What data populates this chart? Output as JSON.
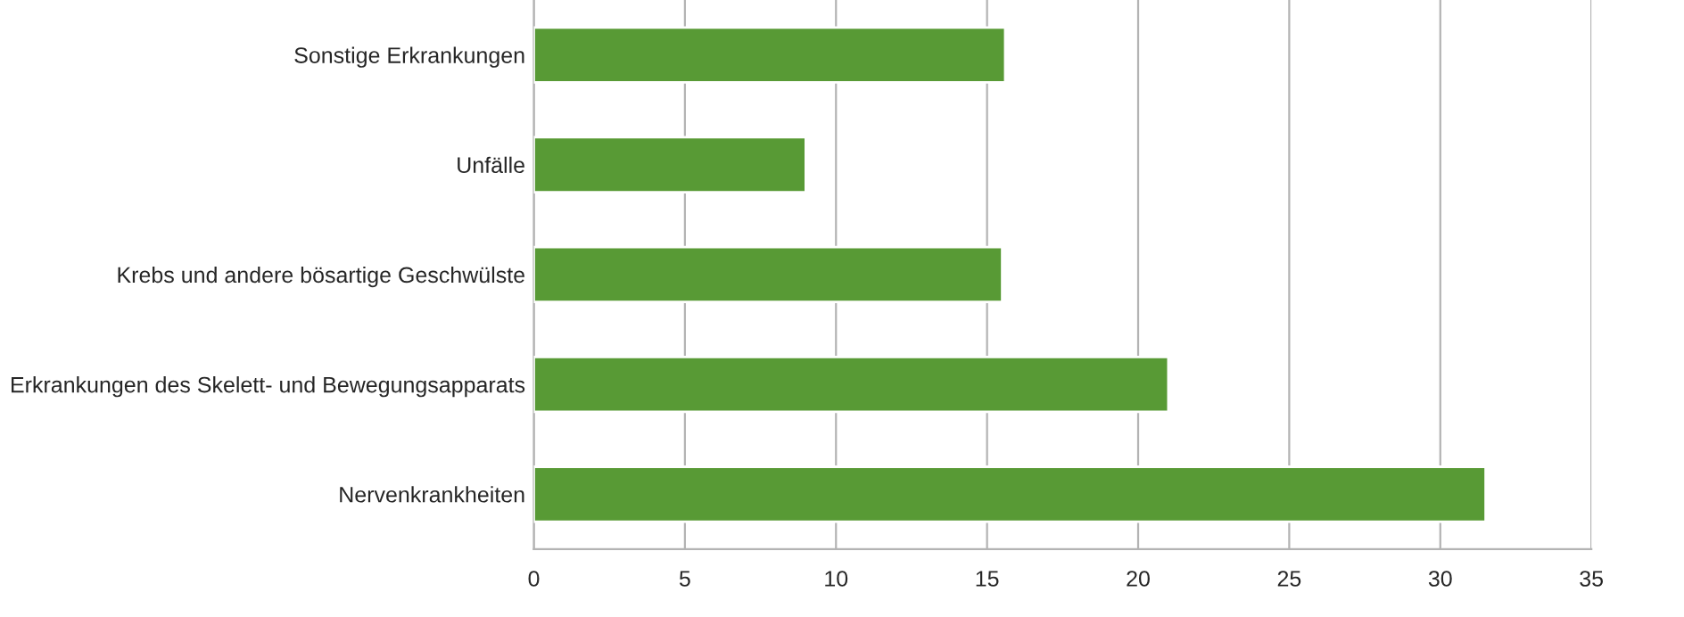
{
  "chart_data": {
    "type": "bar",
    "orientation": "horizontal",
    "categories": [
      "Sonstige Erkrankungen",
      "Unfälle",
      "Krebs und andere bösartige Geschwülste",
      "Erkrankungen des Skelett- und Bewegungsapparats",
      "Nervenkrankheiten"
    ],
    "values": [
      15.6,
      9.0,
      15.5,
      21.0,
      31.5
    ],
    "color": "#589a35",
    "xlim": [
      0,
      35
    ],
    "xticks": [
      0,
      5,
      10,
      15,
      20,
      25,
      30,
      35
    ],
    "grid": "x",
    "legend": false
  }
}
